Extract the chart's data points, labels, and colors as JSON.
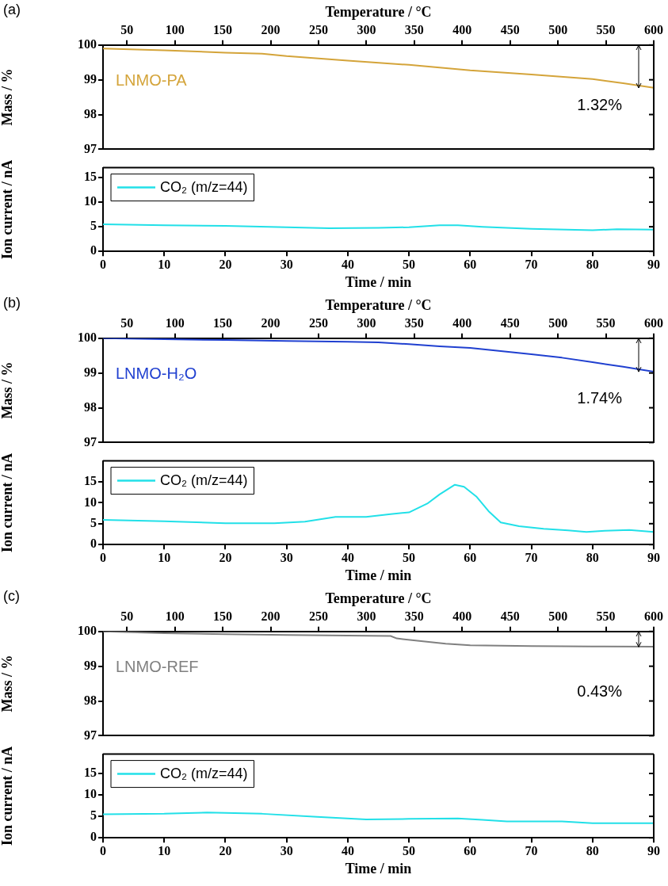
{
  "chart_data": [
    {
      "type": "line",
      "title": "(a)",
      "ylabel": "Mass / %",
      "x2label": "Temperature / °C",
      "xlim": [
        0,
        90
      ],
      "ylim": [
        97,
        100
      ],
      "yticks": [
        97,
        98,
        99,
        100
      ],
      "x2lim": [
        25,
        600
      ],
      "x2ticks": [
        50,
        100,
        150,
        200,
        250,
        300,
        350,
        400,
        450,
        500,
        550,
        600
      ],
      "tick_labels": "y",
      "legend": false,
      "annotations": [
        "1.32%"
      ],
      "series": [
        {
          "name": "LNMO-PA",
          "color": "#d4a43a",
          "x": [
            0,
            10,
            20,
            26,
            30,
            40,
            50,
            60,
            70,
            80,
            85,
            90
          ],
          "values": [
            99.9,
            99.85,
            99.78,
            99.75,
            99.68,
            99.55,
            99.43,
            99.27,
            99.15,
            99.02,
            98.9,
            98.77
          ]
        }
      ]
    },
    {
      "type": "line",
      "xlabel": "Time / min",
      "ylabel": "Ion current / nA",
      "xlim": [
        0,
        90
      ],
      "xticks": [
        0,
        10,
        20,
        30,
        40,
        50,
        60,
        70,
        80,
        90
      ],
      "ylim": [
        0,
        17
      ],
      "yticks": [
        0,
        5,
        10,
        15
      ],
      "legend": "top left",
      "series": [
        {
          "name": "CO₂ (m/z=44)",
          "color": "#22e0e8",
          "x": [
            0,
            10,
            20,
            30,
            37,
            45,
            50,
            55,
            58,
            62,
            70,
            80,
            84,
            90
          ],
          "values": [
            5.5,
            5.3,
            5.2,
            4.9,
            4.7,
            4.8,
            4.9,
            5.3,
            5.3,
            5.0,
            4.6,
            4.3,
            4.5,
            4.4
          ]
        }
      ]
    },
    {
      "type": "line",
      "title": "(b)",
      "ylabel": "Mass / %",
      "x2label": "Temperature / °C",
      "xlim": [
        0,
        90
      ],
      "ylim": [
        97,
        100
      ],
      "yticks": [
        97,
        98,
        99,
        100
      ],
      "x2lim": [
        25,
        600
      ],
      "x2ticks": [
        50,
        100,
        150,
        200,
        250,
        300,
        350,
        400,
        450,
        500,
        550,
        600
      ],
      "tick_labels": "y",
      "legend": false,
      "annotations": [
        "1.74%"
      ],
      "series": [
        {
          "name": "LNMO-H₂O",
          "color": "#2040d0",
          "x": [
            0,
            10,
            20,
            30,
            40,
            45,
            50,
            55,
            60,
            65,
            70,
            75,
            80,
            85,
            90
          ],
          "values": [
            100,
            99.97,
            99.95,
            99.92,
            99.9,
            99.88,
            99.83,
            99.77,
            99.72,
            99.63,
            99.54,
            99.44,
            99.31,
            99.18,
            99.04
          ]
        }
      ]
    },
    {
      "type": "line",
      "xlabel": "Time / min",
      "ylabel": "Ion current / nA",
      "xlim": [
        0,
        90
      ],
      "xticks": [
        0,
        10,
        20,
        30,
        40,
        50,
        60,
        70,
        80,
        90
      ],
      "ylim": [
        0,
        20
      ],
      "yticks": [
        0,
        5,
        10,
        15
      ],
      "legend": "top left",
      "series": [
        {
          "name": "CO₂ (m/z=44)",
          "color": "#22e0e8",
          "x": [
            0,
            10,
            20,
            28,
            33,
            38,
            43,
            47,
            50,
            53,
            55,
            57.5,
            59,
            61,
            63,
            65,
            68,
            72,
            76,
            79,
            82,
            86,
            90
          ],
          "values": [
            5.9,
            5.6,
            5.1,
            5.1,
            5.5,
            6.6,
            6.6,
            7.3,
            7.7,
            9.8,
            12,
            14.3,
            13.8,
            11.5,
            8,
            5.3,
            4.4,
            3.8,
            3.4,
            3.0,
            3.3,
            3.5,
            3.0
          ]
        }
      ]
    },
    {
      "type": "line",
      "title": "(c)",
      "ylabel": "Mass / %",
      "x2label": "Temperature / °C",
      "xlim": [
        0,
        90
      ],
      "ylim": [
        97,
        100
      ],
      "yticks": [
        97,
        98,
        99,
        100
      ],
      "x2lim": [
        25,
        600
      ],
      "x2ticks": [
        50,
        100,
        150,
        200,
        250,
        300,
        350,
        400,
        450,
        500,
        550,
        600
      ],
      "tick_labels": "y",
      "legend": false,
      "annotations": [
        "0.43%"
      ],
      "series": [
        {
          "name": "LNMO-REF",
          "color": "#808080",
          "x": [
            0,
            10,
            20,
            30,
            40,
            47,
            48,
            52,
            56,
            60,
            70,
            80,
            90
          ],
          "values": [
            100,
            99.95,
            99.92,
            99.9,
            99.88,
            99.87,
            99.8,
            99.72,
            99.65,
            99.6,
            99.58,
            99.57,
            99.56
          ]
        }
      ]
    },
    {
      "type": "line",
      "xlabel": "Time / min",
      "ylabel": "Ion current / nA",
      "xlim": [
        0,
        90
      ],
      "xticks": [
        0,
        10,
        20,
        30,
        40,
        50,
        60,
        70,
        80,
        90
      ],
      "ylim": [
        0,
        19.5
      ],
      "yticks": [
        0,
        5,
        10,
        15
      ],
      "legend": "top left",
      "series": [
        {
          "name": "CO₂ (m/z=44)",
          "color": "#22e0e8",
          "x": [
            0,
            10,
            17,
            26,
            35,
            43,
            50,
            58,
            62,
            66,
            75,
            80,
            90
          ],
          "values": [
            5.5,
            5.6,
            5.9,
            5.6,
            4.9,
            4.3,
            4.4,
            4.5,
            4.2,
            3.8,
            3.8,
            3.4,
            3.4
          ]
        }
      ]
    }
  ]
}
